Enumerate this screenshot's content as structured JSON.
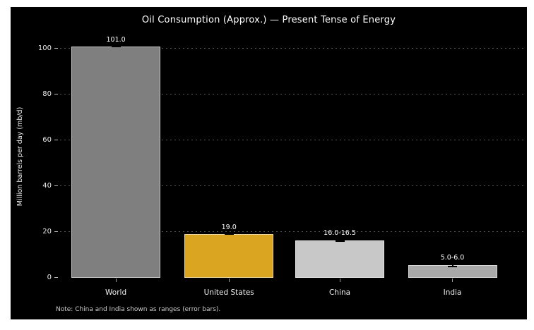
{
  "figure": {
    "background": "#000000",
    "frame": "#ffffff"
  },
  "chart_data": {
    "type": "bar",
    "title": "Oil Consumption (Approx.) — Present Tense of Energy",
    "ylabel": "Million barrels per day (mb/d)",
    "xlabel": "",
    "categories": [
      "World",
      "United States",
      "China",
      "India"
    ],
    "values": [
      101.0,
      19.0,
      16.25,
      5.5
    ],
    "ranges": [
      [
        101.0,
        101.0
      ],
      [
        19.0,
        19.0
      ],
      [
        16.0,
        16.5
      ],
      [
        5.0,
        6.0
      ]
    ],
    "bar_labels": [
      "101.0",
      "19.0",
      "16.0-16.5",
      "5.0-6.0"
    ],
    "bar_colors": [
      "#7f7f7f",
      "#DAA520",
      "#c8c8c8",
      "#a9a9a9"
    ],
    "error_bar_color": "#000000",
    "yticks": [
      0,
      20,
      40,
      60,
      80,
      100
    ],
    "ylim": [
      0,
      106
    ],
    "grid": "horizontal-dotted",
    "legend": false,
    "text_color": "#ffffff",
    "note": "Note: China and India shown as ranges (error bars)."
  }
}
